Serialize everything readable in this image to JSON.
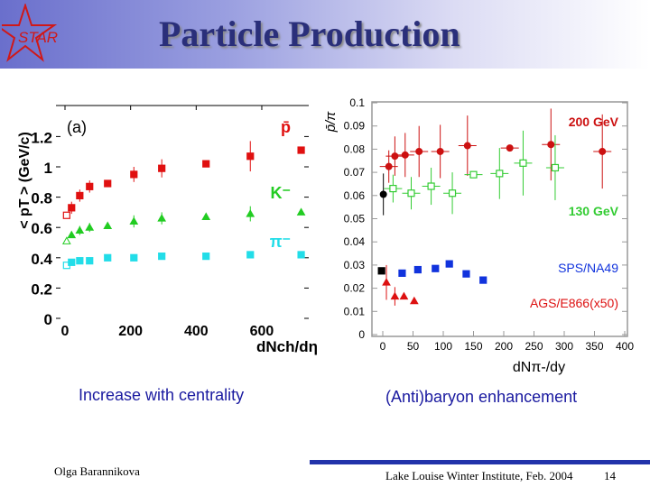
{
  "header": {
    "title": "Particle Production",
    "logo_text": "STAR"
  },
  "captions": {
    "left": "Increase with centrality",
    "right": "(Anti)baryon enhancement"
  },
  "footer": {
    "author": "Olga Barannikova",
    "event": "Lake Louise Winter Institute, Feb. 2004",
    "page": "14"
  },
  "chart_data": [
    {
      "type": "scatter",
      "title": "",
      "panel_label": "(a)",
      "xlabel": "dNch/dη",
      "ylabel": "< pT > (GeV/c)",
      "xlim": [
        -30,
        745
      ],
      "ylim": [
        -0.02,
        1.4
      ],
      "xticks": [
        "0",
        "200",
        "400",
        "600"
      ],
      "yticks": [
        "0",
        "0.2",
        "0.4",
        "0.6",
        "0.8",
        "1",
        "1.2"
      ],
      "series": [
        {
          "name": "p̄",
          "color": "#e01010",
          "marker": "square",
          "x": [
            20,
            45,
            75,
            130,
            210,
            295,
            430,
            565,
            720
          ],
          "y": [
            0.73,
            0.81,
            0.87,
            0.89,
            0.95,
            0.99,
            1.02,
            1.07,
            1.11
          ],
          "err": [
            0.04,
            0.04,
            0.04,
            0,
            0.05,
            0.06,
            0,
            0.1,
            0
          ],
          "open": {
            "x": 5,
            "y": 0.68
          }
        },
        {
          "name": "K⁻",
          "color": "#22cc22",
          "marker": "triangle",
          "x": [
            20,
            45,
            75,
            130,
            210,
            295,
            430,
            565,
            720
          ],
          "y": [
            0.55,
            0.58,
            0.6,
            0.61,
            0.64,
            0.66,
            0.67,
            0.69,
            0.7
          ],
          "err": [
            0.02,
            0.03,
            0.03,
            0,
            0.04,
            0.04,
            0,
            0.05,
            0
          ],
          "open": {
            "x": 5,
            "y": 0.51
          }
        },
        {
          "name": "π⁻",
          "color": "#22dde8",
          "marker": "square",
          "x": [
            20,
            45,
            75,
            130,
            210,
            295,
            430,
            565,
            720
          ],
          "y": [
            0.37,
            0.38,
            0.38,
            0.4,
            0.4,
            0.41,
            0.41,
            0.42,
            0.42
          ],
          "err": [
            0,
            0,
            0,
            0,
            0,
            0,
            0,
            0,
            0
          ],
          "open": {
            "x": 5,
            "y": 0.35
          }
        }
      ]
    },
    {
      "type": "scatter",
      "title": "",
      "xlabel": "dNπ-/dy",
      "ylabel": "p̄/π",
      "xlim": [
        -18,
        405
      ],
      "ylim": [
        0,
        0.1
      ],
      "xticks": [
        "0",
        "50",
        "100",
        "150",
        "200",
        "250",
        "300",
        "350",
        "400"
      ],
      "yticks": [
        "0",
        "0.01",
        "0.02",
        "0.03",
        "0.04",
        "0.05",
        "0.06",
        "0.07",
        "0.08",
        "0.09",
        "0.1"
      ],
      "series": [
        {
          "name": "200 GeV",
          "color": "#cc1111",
          "marker": "circle",
          "x": [
            10,
            20,
            37,
            60,
            95,
            140,
            210,
            278,
            363
          ],
          "y": [
            0.0725,
            0.077,
            0.0775,
            0.079,
            0.079,
            0.0815,
            0.0805,
            0.082,
            0.079
          ],
          "err": [
            0.007,
            0.0085,
            0.0095,
            0.011,
            0.0115,
            0.013,
            0.001,
            0.0155,
            0.016
          ]
        },
        {
          "name": "130 GeV",
          "color": "#33cc33",
          "marker": "open-square",
          "x": [
            17,
            47,
            80,
            115,
            150,
            193,
            232,
            285
          ],
          "y": [
            0.063,
            0.061,
            0.064,
            0.061,
            0.069,
            0.0695,
            0.074,
            0.072
          ],
          "err": [
            0.006,
            0.007,
            0.008,
            0.009,
            0.001,
            0.011,
            0.014,
            0.014
          ]
        },
        {
          "name": "SPS/NA49",
          "color": "#1133dd",
          "marker": "square",
          "x": [
            32,
            58,
            87,
            110,
            138,
            166
          ],
          "y": [
            0.0265,
            0.028,
            0.0285,
            0.0305,
            0.0262,
            0.0235
          ],
          "err": [
            0,
            0,
            0,
            0,
            0,
            0
          ]
        },
        {
          "name": "AGS/E866(x50)",
          "color": "#dd1111",
          "marker": "triangle",
          "x": [
            6,
            20,
            35,
            52
          ],
          "y": [
            0.0225,
            0.0165,
            0.0165,
            0.0145
          ],
          "err": [
            0.0075,
            0.004,
            0.001,
            0
          ]
        },
        {
          "name": "",
          "color": "#000000",
          "marker": "circle",
          "x": [
            1
          ],
          "y": [
            0.0605
          ],
          "err": [
            0.009
          ]
        },
        {
          "name": "",
          "color": "#000000",
          "marker": "square",
          "x": [
            -2
          ],
          "y": [
            0.0275
          ],
          "err": [
            0
          ]
        }
      ]
    }
  ]
}
